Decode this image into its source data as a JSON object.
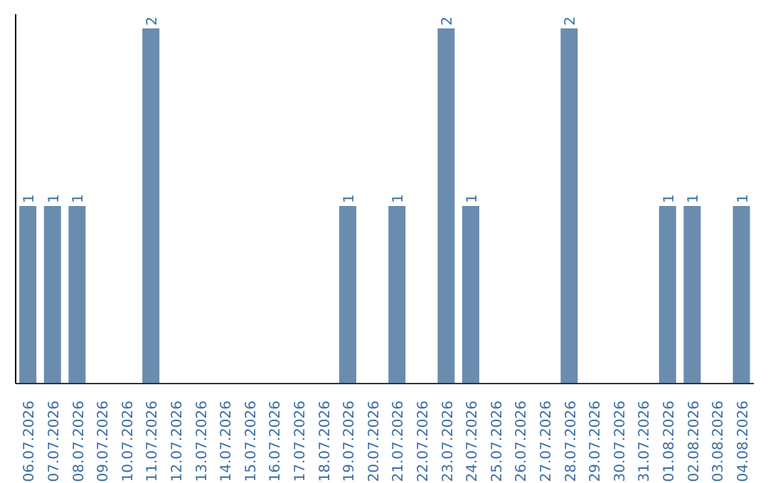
{
  "chart_data": {
    "type": "bar",
    "categories": [
      "06.07.2026",
      "07.07.2026",
      "08.07.2026",
      "09.07.2026",
      "10.07.2026",
      "11.07.2026",
      "12.07.2026",
      "13.07.2026",
      "14.07.2026",
      "15.07.2026",
      "16.07.2026",
      "17.07.2026",
      "18.07.2026",
      "19.07.2026",
      "20.07.2026",
      "21.07.2026",
      "22.07.2026",
      "23.07.2026",
      "24.07.2026",
      "25.07.2026",
      "26.07.2026",
      "27.07.2026",
      "28.07.2026",
      "29.07.2026",
      "30.07.2026",
      "31.07.2026",
      "01.08.2026",
      "02.08.2026",
      "03.08.2026",
      "04.08.2026"
    ],
    "values": [
      1,
      1,
      1,
      0,
      0,
      2,
      0,
      0,
      0,
      0,
      0,
      0,
      0,
      1,
      0,
      1,
      0,
      2,
      1,
      0,
      0,
      0,
      2,
      0,
      0,
      0,
      1,
      1,
      0,
      1
    ],
    "value_labels": [
      "1",
      "1",
      "1",
      null,
      null,
      "2",
      null,
      null,
      null,
      null,
      null,
      null,
      null,
      "1",
      null,
      "1",
      null,
      "2",
      "1",
      null,
      null,
      null,
      "2",
      null,
      null,
      null,
      "1",
      "1",
      null,
      "1"
    ],
    "color": "#6a8caf",
    "grid": false,
    "tick_labels": "x"
  }
}
